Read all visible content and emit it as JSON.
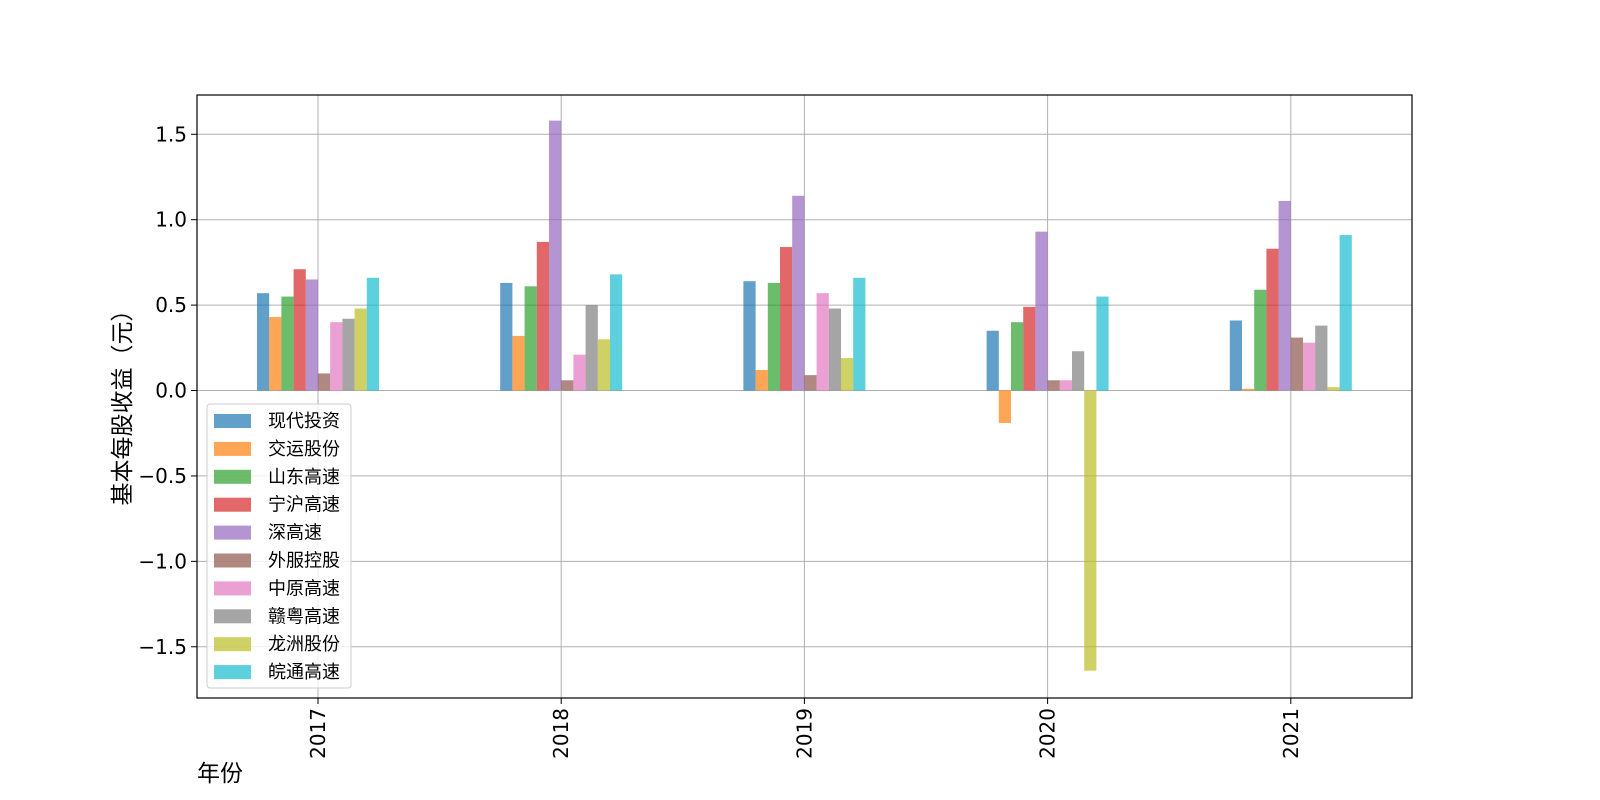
{
  "chart_data": {
    "type": "bar",
    "title": "",
    "xlabel": "年份",
    "ylabel": "基本每股收益（元）",
    "categories": [
      "2017",
      "2018",
      "2019",
      "2020",
      "2021"
    ],
    "yticks": [
      -1.5,
      -1.0,
      -0.5,
      0.0,
      0.5,
      1.0,
      1.5
    ],
    "ytick_labels": [
      "−1.5",
      "−1.0",
      "−0.5",
      "0.0",
      "0.5",
      "1.0",
      "1.5"
    ],
    "ylim": [
      -1.8,
      1.73
    ],
    "grid": true,
    "legend_position": "lower-left",
    "series": [
      {
        "name": "现代投资",
        "color": "#1f77b4",
        "values": [
          0.57,
          0.63,
          0.64,
          0.35,
          0.41
        ]
      },
      {
        "name": "交运股份",
        "color": "#ff7f0e",
        "values": [
          0.43,
          0.32,
          0.12,
          -0.19,
          0.01
        ]
      },
      {
        "name": "山东高速",
        "color": "#2ca02c",
        "values": [
          0.55,
          0.61,
          0.63,
          0.4,
          0.59
        ]
      },
      {
        "name": "宁沪高速",
        "color": "#d62728",
        "values": [
          0.71,
          0.87,
          0.84,
          0.49,
          0.83
        ]
      },
      {
        "name": "深高速",
        "color": "#9467bd",
        "values": [
          0.65,
          1.58,
          1.14,
          0.93,
          1.11
        ]
      },
      {
        "name": "外服控股",
        "color": "#8c564b",
        "values": [
          0.1,
          0.06,
          0.09,
          0.06,
          0.31
        ]
      },
      {
        "name": "中原高速",
        "color": "#e377c2",
        "values": [
          0.4,
          0.21,
          0.57,
          0.06,
          0.28
        ]
      },
      {
        "name": "赣粤高速",
        "color": "#7f7f7f",
        "values": [
          0.42,
          0.5,
          0.48,
          0.23,
          0.38
        ]
      },
      {
        "name": "龙洲股份",
        "color": "#bcbd22",
        "values": [
          0.48,
          0.3,
          0.19,
          -1.64,
          0.02
        ]
      },
      {
        "name": "皖通高速",
        "color": "#17becf",
        "values": [
          0.66,
          0.68,
          0.66,
          0.55,
          0.91
        ]
      }
    ]
  }
}
